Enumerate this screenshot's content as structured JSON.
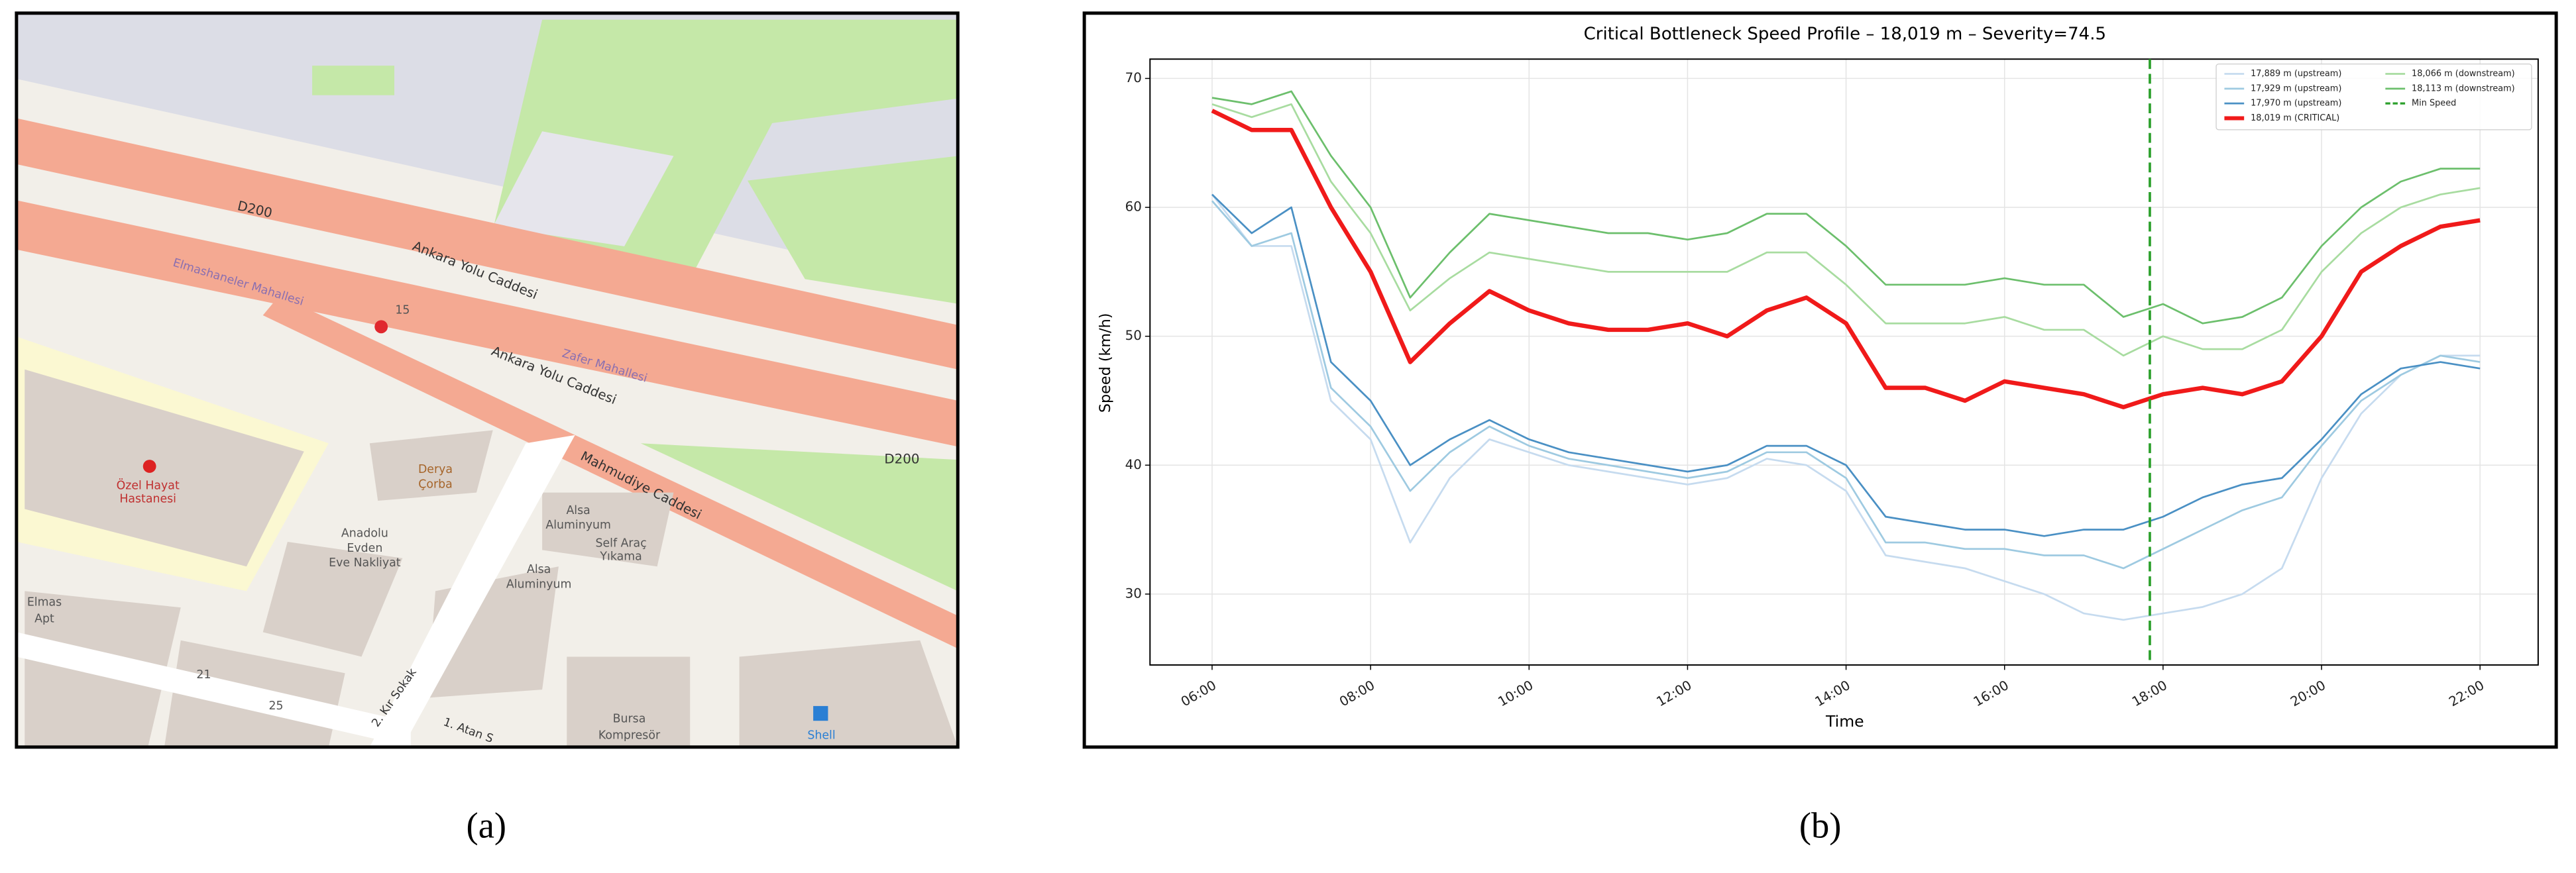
{
  "map": {
    "labels": [
      "D200",
      "Ankara Yolu Caddesi",
      "Elmashaneler Mahallesi",
      "15",
      "Zafer Mahallesi",
      "Ankara Yolu Caddesi",
      "D200",
      "Özel Hayat",
      "Hastanesi",
      "Derya",
      "Çorba",
      "Anadolu",
      "Evden",
      "Eve Nakliyat",
      "Alsa",
      "Aluminyum",
      "Self Araç",
      "Yıkama",
      "Alsa",
      "Aluminyum",
      "Mahmudiye Caddesi",
      "Elmas",
      "Apt",
      "21",
      "25",
      "2. Kır Sokak",
      "1. Atan S",
      "Bursa",
      "Kompresör",
      "Shell"
    ]
  },
  "captions": [
    "(a)",
    "(b)"
  ],
  "chart_data": {
    "type": "line",
    "title": "Critical Bottleneck Speed Profile – 18,019 m – Severity=74.5",
    "xlabel": "Time",
    "ylabel": "Speed (km/h)",
    "x": [
      "06:00",
      "06:30",
      "07:00",
      "07:30",
      "08:00",
      "08:30",
      "09:00",
      "09:30",
      "10:00",
      "10:30",
      "11:00",
      "11:30",
      "12:00",
      "12:30",
      "13:00",
      "13:30",
      "14:00",
      "14:30",
      "15:00",
      "15:30",
      "16:00",
      "16:30",
      "17:00",
      "17:30",
      "18:00",
      "18:30",
      "19:00",
      "19:30",
      "20:00",
      "20:30",
      "21:00",
      "21:30",
      "22:00"
    ],
    "xlim": [
      "05:13",
      "22:44"
    ],
    "xticks": [
      "06:00",
      "08:00",
      "10:00",
      "12:00",
      "14:00",
      "16:00",
      "18:00",
      "20:00",
      "22:00"
    ],
    "ylim": [
      24.5,
      71.5
    ],
    "yticks": [
      30,
      40,
      50,
      60,
      70
    ],
    "grid": true,
    "legend": "upper right",
    "series": [
      {
        "name": "17,889 m (upstream)",
        "color": "#c6dbef",
        "values": [
          61,
          57,
          57,
          45,
          42,
          34,
          39,
          42,
          41,
          40,
          39.5,
          39,
          38.5,
          39,
          40.5,
          40,
          38,
          33,
          32.5,
          32,
          31,
          30,
          28.5,
          28,
          28.5,
          29,
          30,
          32,
          39,
          44,
          47,
          48.5,
          48.5
        ]
      },
      {
        "name": "17,929 m (upstream)",
        "color": "#9ecae1",
        "values": [
          60.5,
          57,
          58,
          46,
          43,
          38,
          41,
          43,
          41.5,
          40.5,
          40,
          39.5,
          39,
          39.5,
          41,
          41,
          39,
          34,
          34,
          33.5,
          33.5,
          33,
          33,
          32,
          33.5,
          35,
          36.5,
          37.5,
          41.5,
          45,
          47,
          48.5,
          48
        ]
      },
      {
        "name": "17,970 m (upstream)",
        "color": "#4a90c4",
        "values": [
          61,
          58,
          60,
          48,
          45,
          40,
          42,
          43.5,
          42,
          41,
          40.5,
          40,
          39.5,
          40,
          41.5,
          41.5,
          40,
          36,
          35.5,
          35,
          35,
          34.5,
          35,
          35,
          36,
          37.5,
          38.5,
          39,
          42,
          45.5,
          47.5,
          48,
          47.5
        ]
      },
      {
        "name": "18,019 m (CRITICAL)",
        "color": "#f01a1a",
        "values": [
          67.5,
          66,
          66,
          60,
          55,
          48,
          51,
          53.5,
          52,
          51,
          50.5,
          50.5,
          51,
          50,
          52,
          53,
          51,
          46,
          46,
          45,
          46.5,
          46,
          45.5,
          44.5,
          45.5,
          46,
          45.5,
          46.5,
          50,
          55,
          57,
          58.5,
          59
        ]
      },
      {
        "name": "18,066 m (downstream)",
        "color": "#a8dca0",
        "values": [
          68,
          67,
          68,
          62,
          58,
          52,
          54.5,
          56.5,
          56,
          55.5,
          55,
          55,
          55,
          55,
          56.5,
          56.5,
          54,
          51,
          51,
          51,
          51.5,
          50.5,
          50.5,
          48.5,
          50,
          49,
          49,
          50.5,
          55,
          58,
          60,
          61,
          61.5
        ]
      },
      {
        "name": "18,113 m (downstream)",
        "color": "#6cbf6c",
        "values": [
          68.5,
          68,
          69,
          64,
          60,
          53,
          56.5,
          59.5,
          59,
          58.5,
          58,
          58,
          57.5,
          58,
          59.5,
          59.5,
          57,
          54,
          54,
          54,
          54.5,
          54,
          54,
          51.5,
          52.5,
          51,
          51.5,
          53,
          57,
          60,
          62,
          63,
          63
        ]
      }
    ],
    "vline": {
      "name": "Min Speed",
      "x": "17:50",
      "color": "#2ca02c"
    }
  }
}
